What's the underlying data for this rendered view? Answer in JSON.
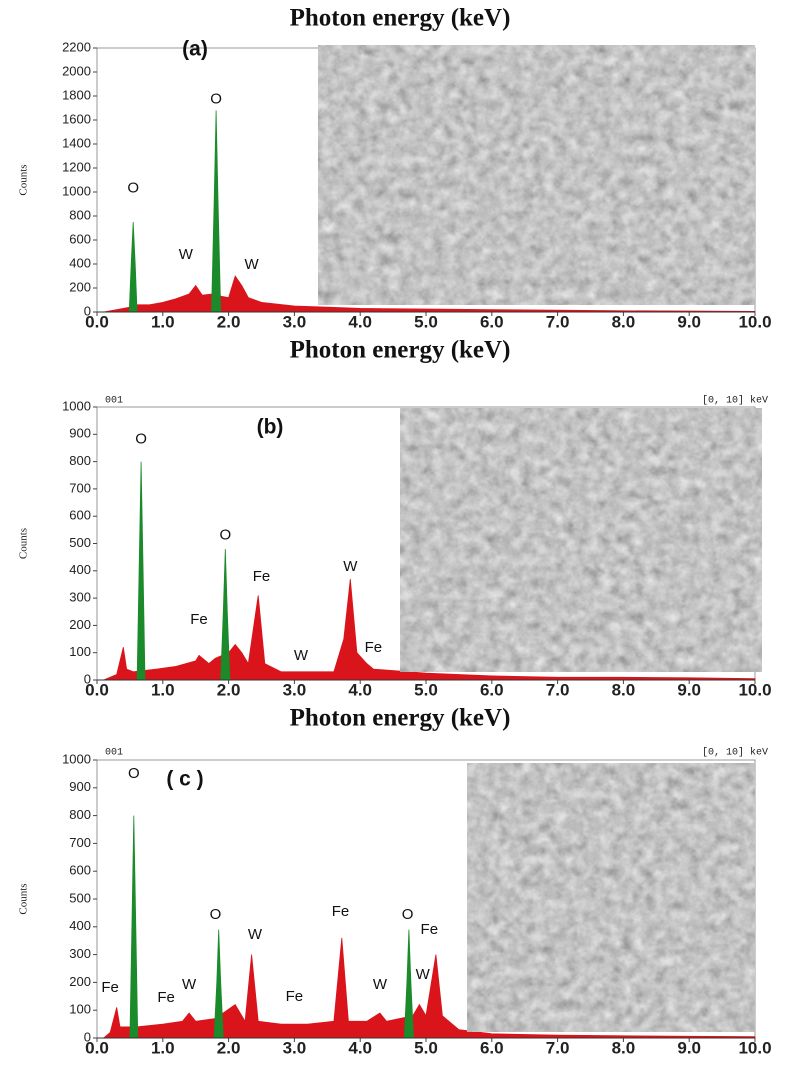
{
  "chart_data": [
    {
      "type": "area",
      "title": "Photon energy (keV)",
      "x_label": "Photon energy (keV)",
      "y_label": "Counts",
      "panel_label": "(a)",
      "xlim": [
        0,
        10
      ],
      "ylim": [
        0,
        2200
      ],
      "xticks": [
        {
          "value": 0,
          "label": "0.0"
        },
        {
          "value": 1,
          "label": "1.0"
        },
        {
          "value": 2,
          "label": "2.0"
        },
        {
          "value": 3,
          "label": "3.0"
        },
        {
          "value": 4,
          "label": "4.0"
        },
        {
          "value": 5,
          "label": "5.0"
        },
        {
          "value": 6,
          "label": "6.0"
        },
        {
          "value": 7,
          "label": "7.0"
        },
        {
          "value": 8,
          "label": "8.0"
        },
        {
          "value": 9,
          "label": "9.0"
        },
        {
          "value": 10,
          "label": "10.0"
        }
      ],
      "yticks": [
        0,
        200,
        400,
        600,
        800,
        1000,
        1200,
        1400,
        1600,
        1800,
        2000,
        2200
      ],
      "series": [
        {
          "color": "#d9141b",
          "x": [
            0.1,
            0.3,
            0.5,
            0.6,
            0.8,
            1.0,
            1.2,
            1.4,
            1.5,
            1.6,
            1.75,
            1.9,
            2.0,
            2.1,
            2.2,
            2.3,
            2.5,
            3.0,
            3.5,
            4.0,
            5.0,
            6.0,
            7.0,
            8.0,
            9.0,
            10.0
          ],
          "values": [
            0,
            20,
            40,
            60,
            60,
            80,
            110,
            150,
            220,
            140,
            150,
            130,
            120,
            300,
            220,
            120,
            80,
            50,
            40,
            30,
            25,
            20,
            15,
            10,
            8,
            5
          ]
        },
        {
          "color": "#1a8a2a",
          "x": [
            0.49,
            0.52,
            0.55,
            0.58,
            0.61
          ],
          "values": [
            0,
            400,
            750,
            400,
            0
          ]
        },
        {
          "color": "#1a8a2a",
          "x": [
            1.74,
            1.78,
            1.81,
            1.84,
            1.88
          ],
          "values": [
            0,
            900,
            1680,
            900,
            0
          ]
        }
      ],
      "annotations": [
        {
          "text": "O",
          "x": 0.55,
          "y": 1030
        },
        {
          "text": "W",
          "x": 1.35,
          "y": 475
        },
        {
          "text": "O",
          "x": 1.81,
          "y": 1770
        },
        {
          "text": "W",
          "x": 2.35,
          "y": 390
        }
      ]
    },
    {
      "type": "area",
      "x_label": "Photon energy (keV)",
      "y_label": "Counts",
      "panel_label": "(b)",
      "header_left": "001",
      "header_right": "[0, 10] keV",
      "xlim": [
        0,
        10
      ],
      "ylim": [
        0,
        1000
      ],
      "xticks": [
        {
          "value": 0,
          "label": "0.0"
        },
        {
          "value": 1,
          "label": "1.0"
        },
        {
          "value": 2,
          "label": "2.0"
        },
        {
          "value": 3,
          "label": "3.0"
        },
        {
          "value": 4,
          "label": "4.0"
        },
        {
          "value": 5,
          "label": "5.0"
        },
        {
          "value": 6,
          "label": "6.0"
        },
        {
          "value": 7,
          "label": "7.0"
        },
        {
          "value": 8,
          "label": "8.0"
        },
        {
          "value": 9,
          "label": "9.0"
        },
        {
          "value": 10,
          "label": "10.0"
        }
      ],
      "yticks": [
        0,
        100,
        200,
        300,
        400,
        500,
        600,
        700,
        800,
        900,
        1000
      ],
      "series": [
        {
          "color": "#d9141b",
          "x": [
            0.1,
            0.3,
            0.4,
            0.45,
            0.55,
            0.9,
            1.2,
            1.5,
            1.55,
            1.7,
            1.8,
            2.0,
            2.1,
            2.2,
            2.3,
            2.45,
            2.55,
            2.8,
            3.2,
            3.6,
            3.75,
            3.85,
            3.95,
            4.1,
            4.2,
            5.0,
            6.0,
            7.0,
            8.0,
            9.0,
            10.0
          ],
          "values": [
            0,
            20,
            120,
            40,
            30,
            40,
            50,
            70,
            90,
            60,
            80,
            100,
            130,
            100,
            60,
            310,
            60,
            30,
            30,
            30,
            150,
            370,
            100,
            60,
            40,
            25,
            15,
            10,
            10,
            8,
            5
          ]
        },
        {
          "color": "#1a8a2a",
          "x": [
            0.61,
            0.64,
            0.67,
            0.7,
            0.73
          ],
          "values": [
            0,
            400,
            800,
            400,
            0
          ]
        },
        {
          "color": "#1a8a2a",
          "x": [
            1.88,
            1.92,
            1.95,
            1.98,
            2.02
          ],
          "values": [
            0,
            250,
            480,
            250,
            0
          ]
        }
      ],
      "annotations": [
        {
          "text": "O",
          "x": 0.67,
          "y": 880
        },
        {
          "text": "O",
          "x": 1.95,
          "y": 530
        },
        {
          "text": "Fe",
          "x": 2.5,
          "y": 377
        },
        {
          "text": "Fe",
          "x": 1.55,
          "y": 220
        },
        {
          "text": "W",
          "x": 3.1,
          "y": 88
        },
        {
          "text": "W",
          "x": 3.85,
          "y": 414
        },
        {
          "text": "Fe",
          "x": 4.2,
          "y": 117
        }
      ]
    },
    {
      "type": "area",
      "y_label": "Counts",
      "panel_label": "( c )",
      "header_left": "001",
      "header_right": "[0, 10] keV",
      "xlim": [
        0,
        10
      ],
      "ylim": [
        0,
        1000
      ],
      "xticks": [
        {
          "value": 0,
          "label": "0.0"
        },
        {
          "value": 1,
          "label": "1.0"
        },
        {
          "value": 2,
          "label": "2.0"
        },
        {
          "value": 3,
          "label": "3.0"
        },
        {
          "value": 4,
          "label": "4.0"
        },
        {
          "value": 5,
          "label": "5.0"
        },
        {
          "value": 6,
          "label": "6.0"
        },
        {
          "value": 7,
          "label": "7.0"
        },
        {
          "value": 8,
          "label": "8.0"
        },
        {
          "value": 9,
          "label": "9.0"
        },
        {
          "value": 10,
          "label": "10.0"
        }
      ],
      "yticks": [
        0,
        100,
        200,
        300,
        400,
        500,
        600,
        700,
        800,
        900,
        1000
      ],
      "series": [
        {
          "color": "#d9141b",
          "x": [
            0.1,
            0.2,
            0.3,
            0.35,
            0.6,
            1.0,
            1.3,
            1.4,
            1.5,
            1.8,
            2.1,
            2.25,
            2.35,
            2.45,
            2.8,
            3.2,
            3.6,
            3.72,
            3.82,
            4.1,
            4.3,
            4.4,
            4.8,
            4.9,
            5.0,
            5.15,
            5.25,
            5.5,
            6.0,
            7.0,
            8.0,
            9.0,
            10.0
          ],
          "values": [
            0,
            20,
            110,
            40,
            40,
            50,
            60,
            90,
            60,
            70,
            120,
            60,
            300,
            60,
            50,
            50,
            60,
            360,
            60,
            60,
            90,
            60,
            80,
            120,
            80,
            300,
            80,
            30,
            15,
            10,
            8,
            6,
            5
          ]
        },
        {
          "color": "#1a8a2a",
          "x": [
            0.5,
            0.53,
            0.56,
            0.59,
            0.62
          ],
          "values": [
            0,
            400,
            800,
            400,
            0
          ]
        },
        {
          "color": "#1a8a2a",
          "x": [
            1.78,
            1.82,
            1.85,
            1.88,
            1.92
          ],
          "values": [
            0,
            200,
            390,
            200,
            0
          ]
        },
        {
          "color": "#1a8a2a",
          "x": [
            4.67,
            4.71,
            4.74,
            4.77,
            4.81
          ],
          "values": [
            0,
            200,
            390,
            200,
            0
          ]
        }
      ],
      "annotations": [
        {
          "text": "O",
          "x": 0.56,
          "y": 950
        },
        {
          "text": "O",
          "x": 1.8,
          "y": 442
        },
        {
          "text": "W",
          "x": 2.4,
          "y": 370
        },
        {
          "text": "Fe",
          "x": 0.2,
          "y": 180
        },
        {
          "text": "Fe",
          "x": 1.05,
          "y": 144
        },
        {
          "text": "W",
          "x": 1.4,
          "y": 190
        },
        {
          "text": "Fe",
          "x": 3.0,
          "y": 147
        },
        {
          "text": "Fe",
          "x": 3.7,
          "y": 453
        },
        {
          "text": "O",
          "x": 4.72,
          "y": 442
        },
        {
          "text": "Fe",
          "x": 5.05,
          "y": 388
        },
        {
          "text": "W",
          "x": 4.3,
          "y": 190
        },
        {
          "text": "W",
          "x": 4.95,
          "y": 227
        }
      ]
    }
  ]
}
